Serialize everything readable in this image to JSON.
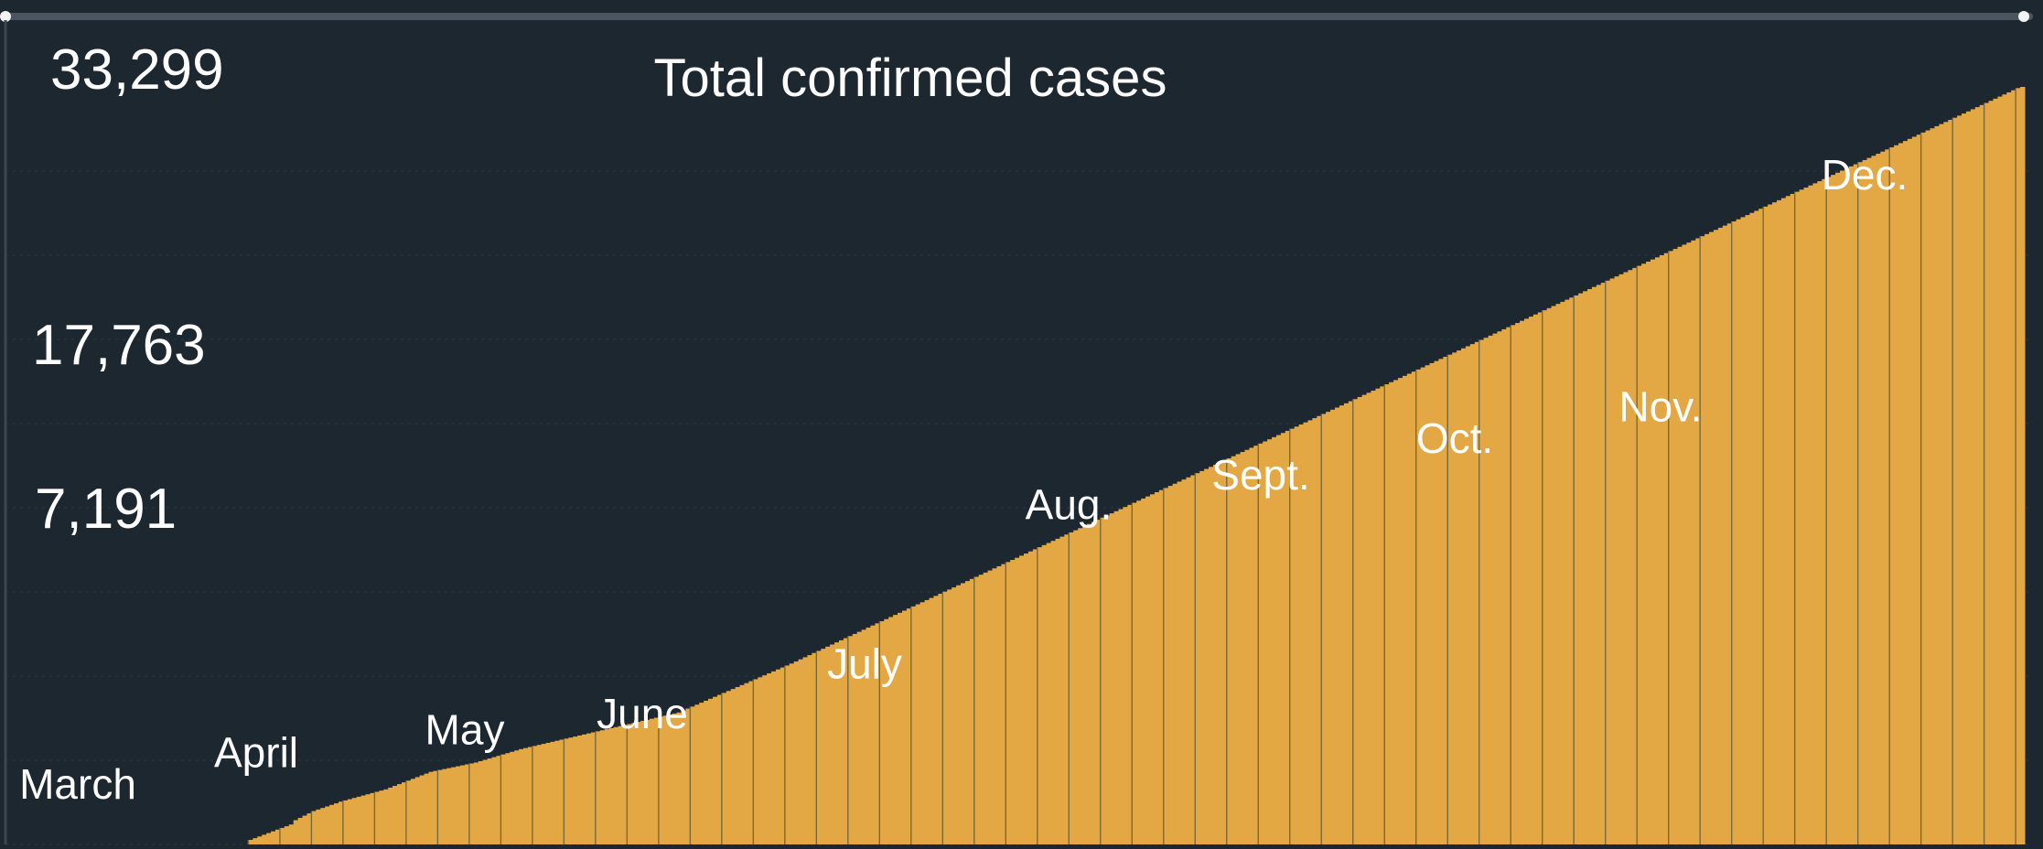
{
  "chart_data": {
    "type": "bar",
    "title": "Total confirmed cases",
    "ylabels": [
      "33,299",
      "17,763",
      "7,191"
    ],
    "y_tick_values": [
      33299,
      17763,
      7191
    ],
    "months": [
      "March",
      "April",
      "May",
      "June",
      "July",
      "Aug.",
      "Sept.",
      "Oct.",
      "Nov.",
      "Dec."
    ],
    "month_label_values": [
      1200,
      2600,
      3600,
      4300,
      6500,
      13500,
      14800,
      16400,
      17800,
      28000
    ],
    "month_starts": [
      0,
      31,
      61,
      92,
      122,
      153,
      184,
      214,
      245,
      275
    ],
    "values": [
      0,
      0,
      0,
      0,
      0,
      0,
      0,
      0,
      0,
      0,
      0,
      0,
      0,
      0,
      0,
      0,
      0,
      0,
      0,
      0,
      0,
      0,
      200,
      275,
      350,
      425,
      500,
      575,
      650,
      725,
      800,
      875,
      1066,
      1166,
      1266,
      1366,
      1466,
      1534,
      1602,
      1670,
      1738,
      1806,
      1880,
      1934,
      1988,
      2042,
      2096,
      2150,
      2204,
      2258,
      2312,
      2366,
      2420,
      2497,
      2574,
      2651,
      2728,
      2805,
      2882,
      2959,
      3036,
      3113,
      3190,
      3231,
      3272,
      3313,
      3354,
      3395,
      3436,
      3477,
      3518,
      3559,
      3600,
      3659,
      3718,
      3777,
      3836,
      3895,
      3954,
      4013,
      4072,
      4131,
      4190,
      4236,
      4282,
      4328,
      4374,
      4420,
      4466,
      4512,
      4558,
      4604,
      4650,
      4696,
      4742,
      4788,
      4834,
      4880,
      4926,
      4972,
      5018,
      5064,
      5110,
      5156,
      5202,
      5248,
      5294,
      5340,
      5386,
      5432,
      5478,
      5524,
      5570,
      5616,
      5662,
      5708,
      5754,
      5800,
      5886,
      5972,
      6058,
      6144,
      6230,
      6316,
      6402,
      6488,
      6574,
      6660,
      6746,
      6832,
      6918,
      7004,
      7090,
      7176,
      7262,
      7348,
      7434,
      7520,
      7606,
      7692,
      7778,
      7864,
      7950,
      8043,
      8136,
      8229,
      8322,
      8415,
      8508,
      8601,
      8694,
      8787,
      8880,
      8973,
      9066,
      9159,
      9252,
      9345,
      9438,
      9531,
      9624,
      9717,
      9810,
      9903,
      9996,
      10089,
      10182,
      10275,
      10368,
      10461,
      10554,
      10647,
      10740,
      10833,
      10926,
      11019,
      11112,
      11205,
      11298,
      11391,
      11484,
      11577,
      11670,
      11763,
      11856,
      11949,
      12042,
      12135,
      12228,
      12321,
      12414,
      12507,
      12600,
      12693,
      12786,
      12879,
      12972,
      13065,
      13158,
      13251,
      13344,
      13437,
      13530,
      13623,
      13716,
      13809,
      13902,
      13995,
      14088,
      14181,
      14274,
      14367,
      14460,
      14553,
      14646,
      14739,
      14832,
      14925,
      15018,
      15111,
      15204,
      15297,
      15390,
      15483,
      15576,
      15669,
      15762,
      15855,
      15948,
      16041,
      16134,
      16227,
      16320,
      16413,
      16506,
      16599,
      16692,
      16785,
      16878,
      16971,
      17064,
      17157,
      17250,
      17343,
      17436,
      17529,
      17622,
      17715,
      17808,
      17901,
      17994,
      18087,
      18180,
      18273,
      18366,
      18459,
      18552,
      18645,
      18738,
      18831,
      18924,
      19017,
      19110,
      19203,
      19296,
      19389,
      19482,
      19575,
      19668,
      19761,
      19854,
      19947,
      20040,
      20133,
      20226,
      20319,
      20412,
      20505,
      20598,
      20691,
      20784,
      20877,
      20970,
      21063,
      21156,
      21249,
      21342,
      21435,
      21528,
      21621,
      21714,
      21807,
      21900,
      21993,
      22086,
      22179,
      22272,
      22365,
      22458,
      22551,
      22644,
      22737,
      22830,
      22923,
      23016,
      23109,
      23202,
      23295,
      23388,
      23481,
      23574,
      23667,
      23760,
      23853,
      23946,
      24039,
      24132,
      24225,
      24318,
      24411,
      24504,
      24597,
      24690,
      24783,
      24876,
      24969,
      25062,
      25155,
      25248,
      25341,
      25434,
      25527,
      25620,
      25713,
      25806,
      25899,
      25992,
      26085,
      26178,
      26271,
      26364,
      26457,
      26550,
      26643,
      26736,
      26829,
      26922,
      27015,
      27108,
      27201,
      27294,
      27387,
      27480,
      27573,
      27666,
      27759,
      27852,
      27945,
      28038,
      28131,
      28224,
      28317,
      28410,
      28503,
      28596,
      28689,
      28782,
      28875,
      28968,
      29061,
      29154,
      29247,
      29340,
      29433,
      29526,
      29619,
      29712,
      29805,
      29898,
      29991,
      30084,
      30177,
      30270,
      30363,
      30456,
      30549,
      30642,
      30735,
      30828,
      30921,
      31014,
      31107,
      31200,
      31293,
      31386,
      31479,
      31572,
      31665,
      31758,
      31851,
      31944,
      32037,
      32130,
      32223,
      32316,
      32409,
      32502,
      32595,
      32688,
      32781,
      32874,
      32967,
      33060,
      33153,
      33246,
      33299
    ],
    "colors": {
      "bar": "#e3a843",
      "background": "#1c2730",
      "text": "#ffffff",
      "divider": "#7a6a3a",
      "grid": "#2d3944"
    }
  }
}
